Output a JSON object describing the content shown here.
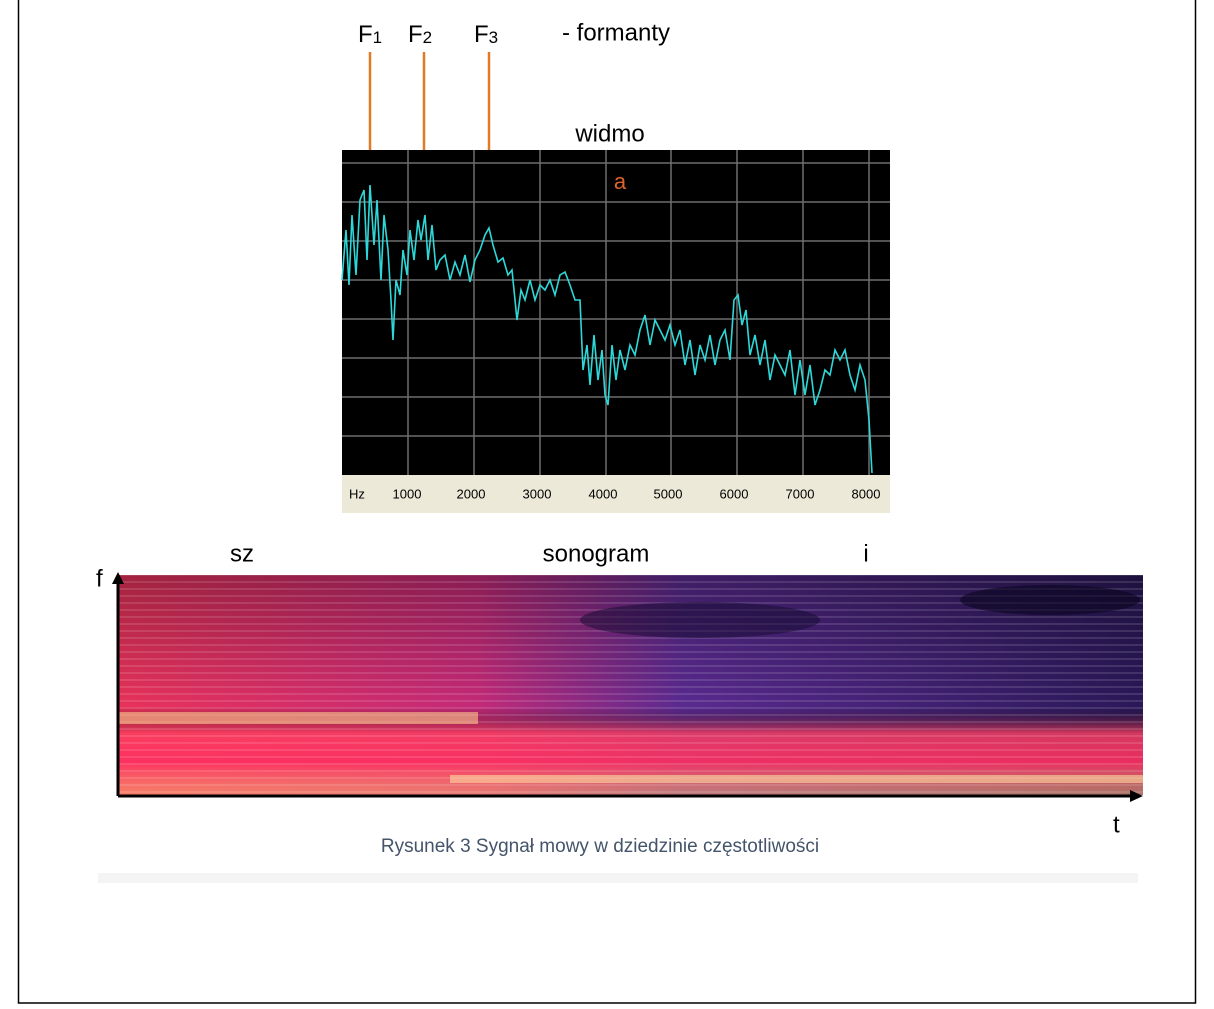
{
  "figure": {
    "formants": [
      {
        "letter": "F",
        "sub": "1"
      },
      {
        "letter": "F",
        "sub": "2"
      },
      {
        "letter": "F",
        "sub": "3"
      }
    ],
    "formants_label": "- formanty",
    "spectrum_title": "widmo",
    "vowel": "a",
    "axis_labels": [
      "Hz",
      "1000",
      "2000",
      "3000",
      "4000",
      "5000",
      "6000",
      "7000",
      "8000"
    ],
    "left_sound": "sz",
    "sonogram_title": "sonogram",
    "right_sound": "i",
    "f_axis": "f",
    "t_axis": "t",
    "caption": "Rysunek 3 Sygnał mowy w dziedzinie częstotliwości"
  }
}
